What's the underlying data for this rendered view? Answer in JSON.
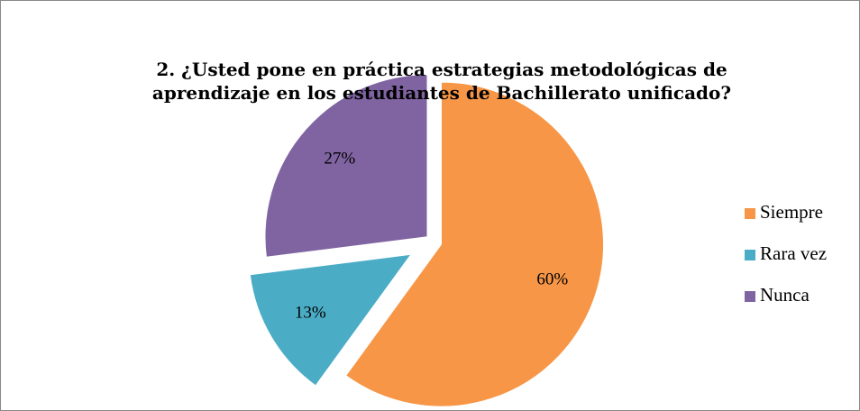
{
  "chart_data": {
    "type": "pie",
    "title": "2. ¿Usted pone en práctica estrategias metodológicas de aprendizaje en los estudiantes de Bachillerato unificado?",
    "categories": [
      "Siempre",
      "Rara vez",
      "Nunca"
    ],
    "values": [
      60,
      13,
      27
    ],
    "value_labels": [
      "60%",
      "13%",
      "27%"
    ],
    "colors": [
      "#f79646",
      "#4bacc6",
      "#8064a2"
    ],
    "legend": "right"
  }
}
